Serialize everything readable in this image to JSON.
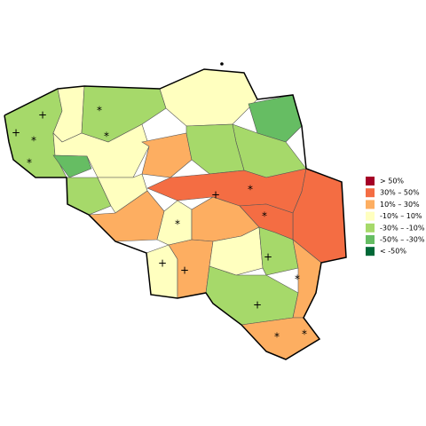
{
  "legend": {
    "items": [
      {
        "label": "> 50%",
        "color": "#a50026"
      },
      {
        "label": "30%  –  50%",
        "color": "#f46d43"
      },
      {
        "label": "10%  –  30%",
        "color": "#fdae61"
      },
      {
        "label": "-10%  –  10%",
        "color": "#ffffbf"
      },
      {
        "label": "-30%  –  -10%",
        "color": "#a6d96a"
      },
      {
        "label": "-50%  –  -30%",
        "color": "#66bd63"
      },
      {
        "label": "< -50%",
        "color": "#006837"
      }
    ]
  },
  "markers": [
    "+",
    "+",
    "+",
    "+",
    "+",
    "+",
    "+",
    "*",
    "*",
    "*",
    "*",
    "*",
    "*",
    "*",
    "*",
    "*",
    "*"
  ]
}
